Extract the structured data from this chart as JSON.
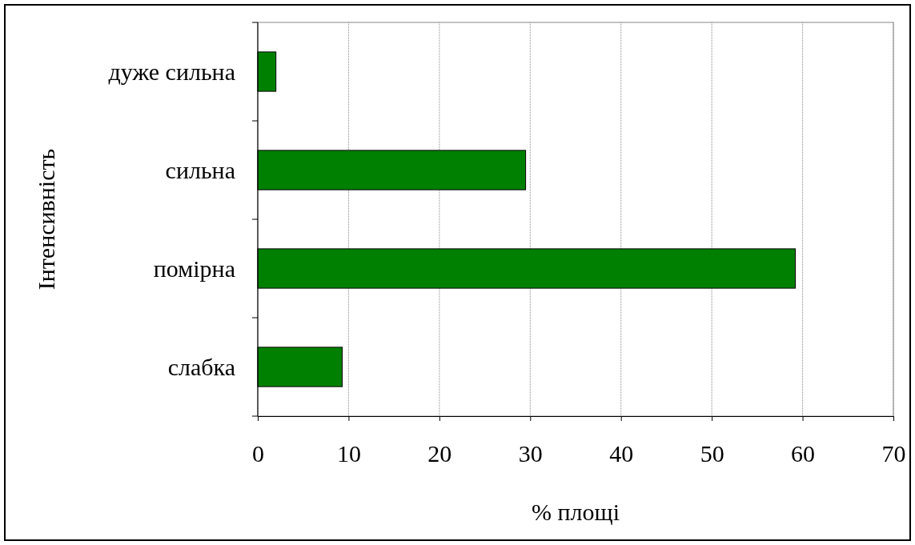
{
  "chart_data": {
    "type": "bar",
    "orientation": "horizontal",
    "xlabel": "% площі",
    "ylabel": "Інтенсивність",
    "categories": [
      "дуже сильна",
      "сильна",
      "помірна",
      "слабка"
    ],
    "values": [
      2.0,
      29.5,
      59.2,
      9.3
    ],
    "color": "#008000",
    "xlim": [
      0,
      70
    ],
    "xticks": [
      0,
      10,
      20,
      30,
      40,
      50,
      60,
      70
    ],
    "grid": "x"
  }
}
